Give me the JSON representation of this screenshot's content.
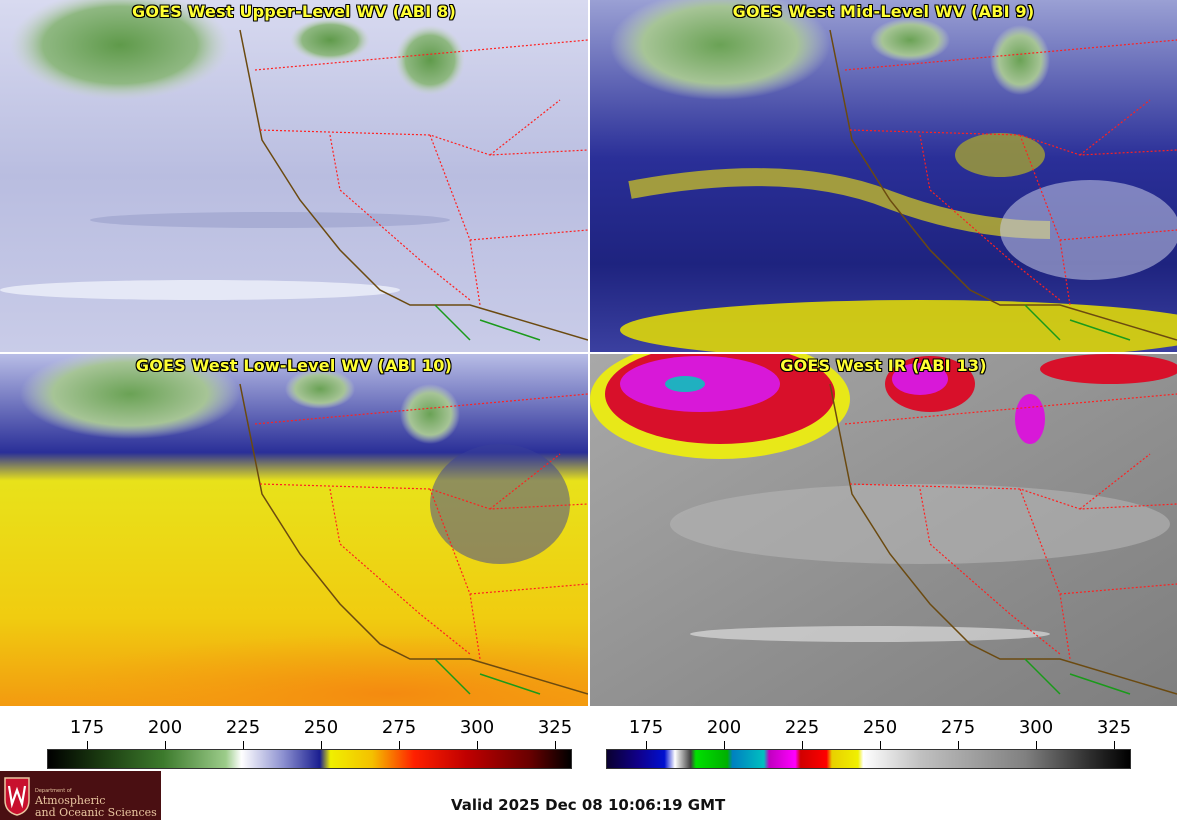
{
  "panels": [
    {
      "title": "GOES West Upper-Level WV (ABI 8)"
    },
    {
      "title": "GOES West Mid-Level WV (ABI 9)"
    },
    {
      "title": "GOES West Low-Level WV (ABI 10)"
    },
    {
      "title": "GOES West IR (ABI 13)"
    }
  ],
  "colorbar_wv": {
    "ticks": [
      "175",
      "200",
      "225",
      "250",
      "275",
      "300",
      "325"
    ]
  },
  "colorbar_ir": {
    "ticks": [
      "175",
      "200",
      "225",
      "250",
      "275",
      "300",
      "325"
    ]
  },
  "logo": {
    "dept": "Department of",
    "line1": "Atmospheric",
    "line2": "and Oceanic Sciences"
  },
  "valid_time": "Valid 2025 Dec 08 10:06:19 GMT",
  "colors": {
    "title_yellow": "#ffff33",
    "state_border": "#ff2020",
    "coast": "#6b4a10",
    "mexico_border": "#1a9a1a"
  }
}
